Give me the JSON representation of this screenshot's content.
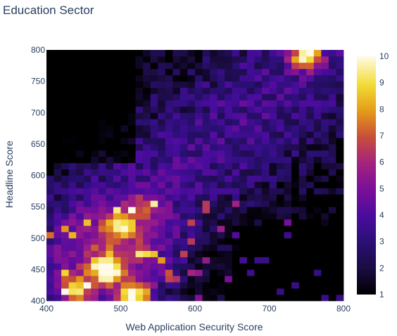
{
  "chart_data": {
    "type": "heatmap",
    "title": "Education Sector",
    "xlabel": "Web Application Security Score",
    "ylabel": "Headline Score",
    "xlim": [
      400,
      800
    ],
    "ylim": [
      400,
      800
    ],
    "x_ticks": [
      400,
      500,
      600,
      700,
      800
    ],
    "y_ticks": [
      400,
      450,
      500,
      550,
      600,
      650,
      700,
      750,
      800
    ],
    "colorscale_range": [
      1,
      10
    ],
    "colorbar_ticks": [
      1,
      2,
      3,
      4,
      5,
      6,
      7,
      8,
      9,
      10
    ],
    "colorscale": [
      "#0d0887",
      "#46039f",
      "#7201a8",
      "#9c179e",
      "#bd3786",
      "#d8576b",
      "#ed7953",
      "#fb9f3a",
      "#fdca26",
      "#f0f921"
    ],
    "colorscale_note": "Plasma-like scale ending at black (1) through purple to yellow/white (10)",
    "bin_size": 10,
    "hotspots": [
      {
        "x": 750,
        "y": 790,
        "value": 10
      },
      {
        "x": 520,
        "y": 410,
        "value": 10
      },
      {
        "x": 480,
        "y": 450,
        "value": 9
      },
      {
        "x": 440,
        "y": 420,
        "value": 8
      },
      {
        "x": 500,
        "y": 520,
        "value": 7
      },
      {
        "x": 530,
        "y": 550,
        "value": 6
      }
    ]
  }
}
